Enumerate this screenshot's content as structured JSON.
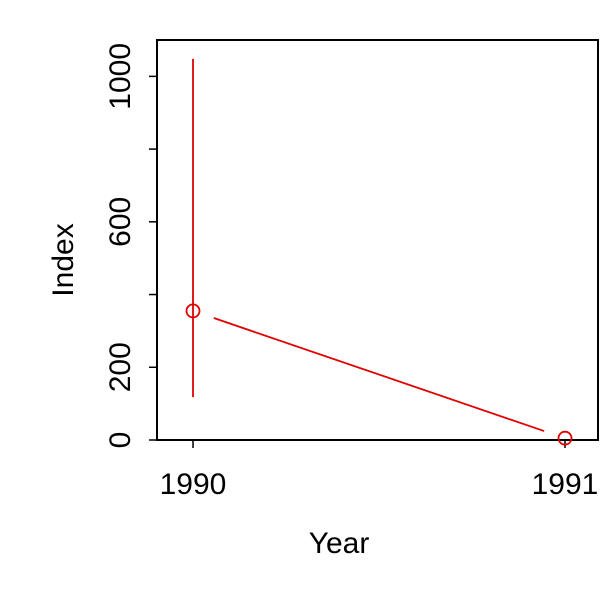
{
  "chart_data": {
    "type": "line",
    "title": "",
    "xlabel": "Year",
    "ylabel": "Index",
    "x": [
      1990,
      1991
    ],
    "x_ticks": [
      "1990",
      "1991"
    ],
    "y_ticks": [
      0,
      200,
      600,
      1000
    ],
    "ylim": [
      0,
      1100
    ],
    "grid": false,
    "legend": "none",
    "series": [
      {
        "color": "#e00000",
        "points": [
          {
            "x": 1990,
            "y": 355,
            "error_low": 118,
            "error_high": 1048
          },
          {
            "x": 1991,
            "y": 5
          }
        ]
      }
    ]
  }
}
